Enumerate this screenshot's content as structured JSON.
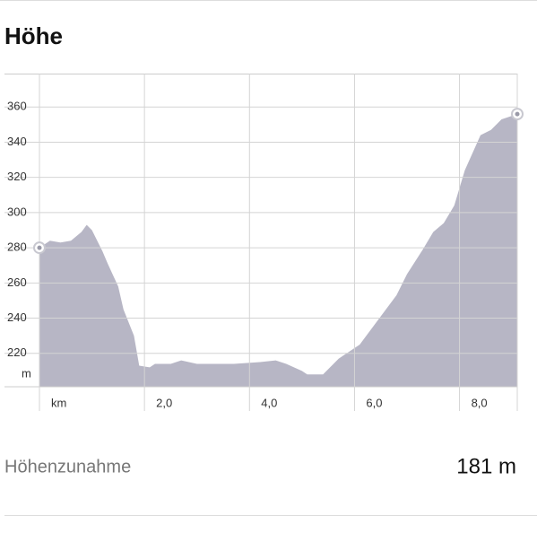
{
  "header": {
    "title": "Höhe"
  },
  "chart_data": {
    "type": "area",
    "color": "#b7b6c5",
    "x": [
      0,
      0.2,
      0.4,
      0.6,
      0.8,
      0.9,
      1.0,
      1.2,
      1.3,
      1.5,
      1.6,
      1.8,
      1.9,
      2.1,
      2.2,
      2.5,
      2.7,
      3.0,
      3.3,
      3.7,
      4.2,
      4.5,
      4.7,
      5.0,
      5.1,
      5.4,
      5.7,
      6.1,
      6.4,
      6.8,
      7.0,
      7.3,
      7.5,
      7.7,
      7.9,
      8.1,
      8.4,
      8.6,
      8.8,
      9.1
    ],
    "values": [
      280,
      284,
      283,
      284,
      289,
      293,
      290,
      278,
      271,
      258,
      245,
      230,
      213,
      212,
      214,
      214,
      216,
      214,
      214,
      214,
      215,
      216,
      214,
      210,
      208,
      208,
      217,
      225,
      237,
      253,
      265,
      279,
      289,
      294,
      304,
      324,
      344,
      347,
      353,
      356
    ],
    "xlim": [
      0,
      9.1
    ],
    "ylim": [
      201,
      379
    ],
    "xticks": [
      {
        "value": 0,
        "label": "km"
      },
      {
        "value": 2,
        "label": "2,0"
      },
      {
        "value": 4,
        "label": "4,0"
      },
      {
        "value": 6,
        "label": "6,0"
      },
      {
        "value": 8,
        "label": "8,0"
      }
    ],
    "yticks": [
      220,
      240,
      260,
      280,
      300,
      320,
      340,
      360
    ],
    "y_unit": "m",
    "grid": true
  },
  "summary": {
    "label": "Höhenzunahme",
    "value": "181 m"
  }
}
